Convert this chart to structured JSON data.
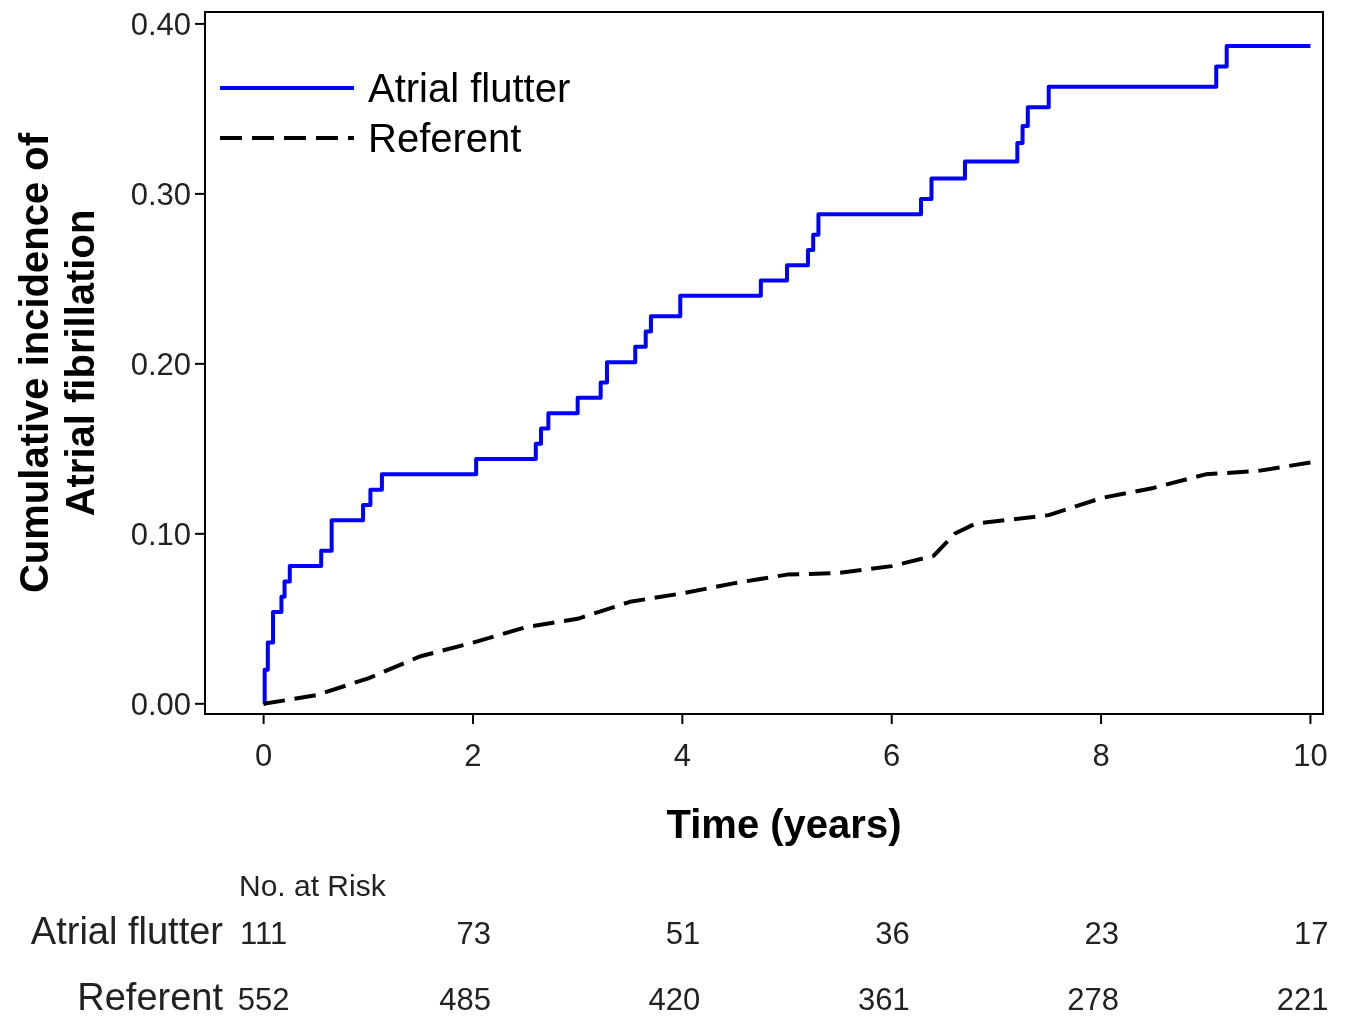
{
  "chart_data": {
    "type": "step",
    "xlabel": "Time (years)",
    "ylabel": "Cumulative incidence of\nAtrial fibrillation",
    "xlim": [
      -0.56,
      10.12
    ],
    "ylim": [
      -0.006,
      0.407
    ],
    "xticks": [
      0,
      2,
      4,
      6,
      8,
      10
    ],
    "yticks": [
      {
        "value": 0,
        "label": "0.00"
      },
      {
        "value": 0.1,
        "label": "0.10"
      },
      {
        "value": 0.2,
        "label": "0.20"
      },
      {
        "value": 0.3,
        "label": "0.30"
      },
      {
        "value": 0.4,
        "label": "0.40"
      }
    ],
    "grid": false,
    "legend": "top left",
    "marker": "none",
    "series": [
      {
        "name": "Atrial flutter",
        "color": "#0000ff",
        "line_style": "solid",
        "x": [
          0,
          0.01,
          0.04,
          0.09,
          0.17,
          0.2,
          0.25,
          0.55,
          0.65,
          0.95,
          1.02,
          1.13,
          2.03,
          2.6,
          2.65,
          2.72,
          3.0,
          3.22,
          3.28,
          3.55,
          3.65,
          3.7,
          3.98,
          4.75,
          5.0,
          5.2,
          5.25,
          5.3,
          6.28,
          6.38,
          6.7,
          7.2,
          7.25,
          7.3,
          7.5,
          9.1,
          9.2,
          10
        ],
        "values": [
          0,
          0.02,
          0.036,
          0.054,
          0.063,
          0.072,
          0.081,
          0.09,
          0.108,
          0.117,
          0.126,
          0.135,
          0.144,
          0.153,
          0.162,
          0.171,
          0.18,
          0.189,
          0.201,
          0.21,
          0.219,
          0.228,
          0.24,
          0.249,
          0.258,
          0.267,
          0.276,
          0.288,
          0.297,
          0.309,
          0.319,
          0.33,
          0.34,
          0.351,
          0.363,
          0.375,
          0.387,
          0.387
        ]
      },
      {
        "name": "Referent",
        "type": "line",
        "color": "#000000",
        "line_style": "dashed",
        "x": [
          0,
          0.5,
          1,
          1.5,
          2,
          2.5,
          3,
          3.5,
          4,
          4.5,
          5,
          5.5,
          6,
          6.4,
          6.6,
          6.8,
          7.5,
          8,
          8.5,
          9,
          9.5,
          10
        ],
        "values": [
          0,
          0.005,
          0.015,
          0.028,
          0.036,
          0.045,
          0.05,
          0.06,
          0.065,
          0.071,
          0.076,
          0.077,
          0.081,
          0.087,
          0.1,
          0.106,
          0.111,
          0.121,
          0.127,
          0.135,
          0.137,
          0.142
        ]
      }
    ],
    "annotations": [
      "No. at Risk",
      "Atrial flutter",
      "111",
      "73",
      "51",
      "36",
      "23",
      "17",
      "Referent",
      "552",
      "485",
      "420",
      "361",
      "278",
      "221"
    ]
  }
}
